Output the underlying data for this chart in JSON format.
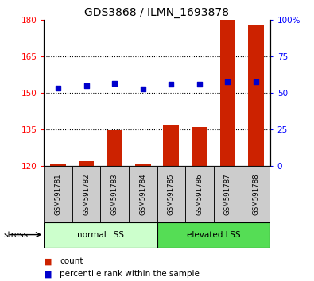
{
  "title": "GDS3868 / ILMN_1693878",
  "samples": [
    "GSM591781",
    "GSM591782",
    "GSM591783",
    "GSM591784",
    "GSM591785",
    "GSM591786",
    "GSM591787",
    "GSM591788"
  ],
  "count_values": [
    120.5,
    122.0,
    134.5,
    120.5,
    137.0,
    136.0,
    180.0,
    178.0
  ],
  "percentile_values": [
    152.0,
    153.0,
    154.0,
    151.5,
    153.5,
    153.5,
    154.5,
    154.5
  ],
  "ylim_left": [
    120,
    180
  ],
  "ylim_right": [
    0,
    100
  ],
  "yticks_left": [
    120,
    135,
    150,
    165,
    180
  ],
  "yticks_right": [
    0,
    25,
    50,
    75,
    100
  ],
  "bar_color": "#cc2200",
  "dot_color": "#0000cc",
  "group1_label": "normal LSS",
  "group2_label": "elevated LSS",
  "group1_bg": "#ccffcc",
  "group2_bg": "#55dd55",
  "stress_label": "stress ▶",
  "legend_count": "count",
  "legend_percentile": "percentile rank within the sample",
  "xlabel_area_color": "#cccccc",
  "title_fontsize": 10,
  "tick_fontsize": 7.5,
  "label_fontsize": 8,
  "bar_width": 0.55
}
